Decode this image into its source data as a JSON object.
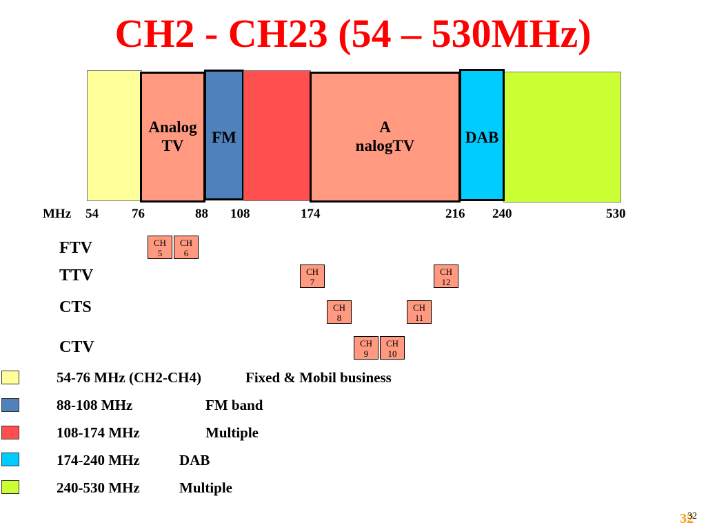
{
  "title": "CH2 - CH23 (54 – 530MHz)",
  "colors": {
    "title": "#ff0000",
    "yellow": "#ffff99",
    "salmon": "#ff9980",
    "blue": "#4f81bd",
    "red": "#ff4f4f",
    "cyan": "#00ccff",
    "lime": "#ccff33"
  },
  "bands": {
    "analog_tv_1": {
      "line1": "Analog",
      "line2": "TV"
    },
    "fm": "FM",
    "analog_tv_2": {
      "line1": "A",
      "line2": "nalogTV"
    },
    "dab": "DAB"
  },
  "axis": {
    "unit": "MHz",
    "ticks": [
      "54",
      "76",
      "88",
      "108",
      "174",
      "216",
      "240",
      "530"
    ]
  },
  "rows": [
    "FTV",
    "TTV",
    "CTS",
    "CTV"
  ],
  "channels": {
    "ch5": {
      "line1": "CH",
      "line2": "5"
    },
    "ch6": {
      "line1": "CH",
      "line2": "6"
    },
    "ch7": {
      "line1": "CH",
      "line2": "7"
    },
    "ch12": {
      "line1": "CH",
      "line2": "12"
    },
    "ch8": {
      "line1": "CH",
      "line2": "8"
    },
    "ch11": {
      "line1": "CH",
      "line2": "11"
    },
    "ch9": {
      "line1": "CH",
      "line2": "9"
    },
    "ch10": {
      "line1": "CH",
      "line2": "10"
    }
  },
  "legend": [
    {
      "range": "54-76 MHz (CH2-CH4)",
      "desc": "Fixed & Mobil business"
    },
    {
      "range": "88-108 MHz",
      "desc": "FM band"
    },
    {
      "range": "108-174 MHz",
      "desc": "Multiple"
    },
    {
      "range": "174-240 MHz",
      "desc": "DAB"
    },
    {
      "range": "240-530 MHz",
      "desc": "Multiple"
    }
  ],
  "slide_number": "32",
  "slide_number_small": "32"
}
